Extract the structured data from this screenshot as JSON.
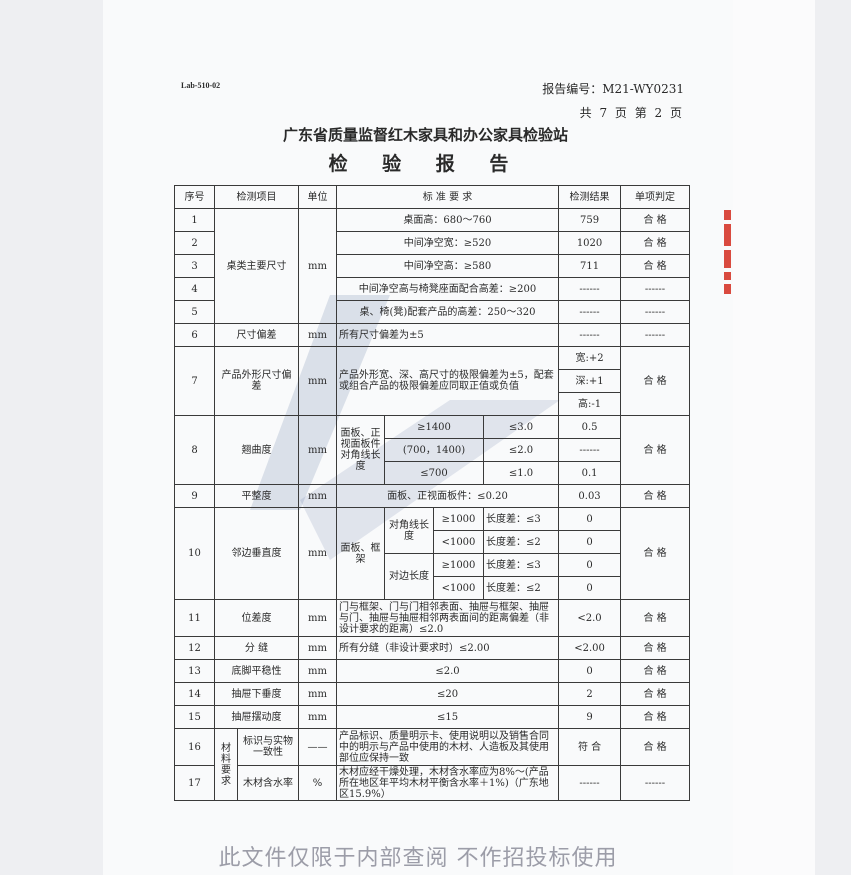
{
  "header": {
    "form_code": "Lab-510-02",
    "report_no": "报告编号：M21-WY0231",
    "page_info": "共 7 页 第 2 页",
    "organization": "广东省质量监督红木家具和办公家具检验站",
    "title": "检 验 报 告"
  },
  "watermark": "此文件仅限于内部查阅 不作招投标使用",
  "stamp_color": "#d94a3f",
  "table": {
    "headers": [
      "序号",
      "检测项目",
      "单位",
      "标 准 要 求",
      "检测结果",
      "单项判定"
    ],
    "r1": {
      "no": "1",
      "item": "桌类主要尺寸",
      "unit": "mm",
      "std": "桌面高：680～760",
      "result": "759",
      "verdict": "合 格"
    },
    "r2": {
      "no": "2",
      "std": "中间净空宽：≥520",
      "result": "1020",
      "verdict": "合 格"
    },
    "r3": {
      "no": "3",
      "std": "中间净空高：≥580",
      "result": "711",
      "verdict": "合 格"
    },
    "r4": {
      "no": "4",
      "std": "中间净空高与椅凳座面配合高差：≥200",
      "result": "------",
      "verdict": "------"
    },
    "r5": {
      "no": "5",
      "std": "桌、椅(凳)配套产品的高差：250～320",
      "result": "------",
      "verdict": "------"
    },
    "r6": {
      "no": "6",
      "item": "尺寸偏差",
      "unit": "mm",
      "std": "所有尺寸偏差为±5",
      "result": "------",
      "verdict": "------"
    },
    "r7": {
      "no": "7",
      "item": "产品外形尺寸偏差",
      "unit": "mm",
      "std": "产品外形宽、深、高尺寸的极限偏差为±5，配套或组合产品的极限偏差应同取正值或负值",
      "results": [
        "宽:+2",
        "深:+1",
        "高:-1"
      ],
      "verdict": "合 格"
    },
    "r8": {
      "no": "8",
      "item": "翘曲度",
      "unit": "mm",
      "label": "面板、正视面板件对角线长度",
      "subs": [
        {
          "range": "≥1400",
          "limit": "≤3.0",
          "result": "0.5"
        },
        {
          "range": "(700，1400)",
          "limit": "≤2.0",
          "result": "------"
        },
        {
          "range": "≤700",
          "limit": "≤1.0",
          "result": "0.1"
        }
      ],
      "verdict": "合 格"
    },
    "r9": {
      "no": "9",
      "item": "平整度",
      "unit": "mm",
      "std": "面板、正视面板件：≤0.20",
      "result": "0.03",
      "verdict": "合 格"
    },
    "r10": {
      "no": "10",
      "item": "邻边垂直度",
      "unit": "mm",
      "label": "面板、框架",
      "groups": [
        "对角线长度",
        "对边长度"
      ],
      "subs": [
        {
          "range": "≥1000",
          "limit": "长度差：≤3",
          "result": "0"
        },
        {
          "range": "<1000",
          "limit": "长度差：≤2",
          "result": "0"
        },
        {
          "range": "≥1000",
          "limit": "长度差：≤3",
          "result": "0"
        },
        {
          "range": "<1000",
          "limit": "长度差：≤2",
          "result": "0"
        }
      ],
      "verdict": "合 格"
    },
    "r11": {
      "no": "11",
      "item": "位差度",
      "unit": "mm",
      "std": "门与框架、门与门相邻表面、抽屉与框架、抽屉与门、抽屉与抽屉相邻两表面间的距离偏差（非设计要求的距离）≤2.0",
      "result": "<2.0",
      "verdict": "合 格"
    },
    "r12": {
      "no": "12",
      "item": "分 缝",
      "unit": "mm",
      "std": "所有分缝（非设计要求时）≤2.00",
      "result": "<2.00",
      "verdict": "合 格"
    },
    "r13": {
      "no": "13",
      "item": "底脚平稳性",
      "unit": "mm",
      "std": "≤2.0",
      "result": "0",
      "verdict": "合 格"
    },
    "r14": {
      "no": "14",
      "item": "抽屉下垂度",
      "unit": "mm",
      "std": "≤20",
      "result": "2",
      "verdict": "合 格"
    },
    "r15": {
      "no": "15",
      "item": "抽屉摆动度",
      "unit": "mm",
      "std": "≤15",
      "result": "9",
      "verdict": "合 格"
    },
    "material_group": "材料要求",
    "r16": {
      "no": "16",
      "item": "标识与实物一致性",
      "unit": "——",
      "std": "产品标识、质量明示卡、使用说明以及销售合同中的明示与产品中使用的木材、人造板及其使用部位应保持一致",
      "result": "符 合",
      "verdict": "合 格"
    },
    "r17": {
      "no": "17",
      "item": "木材含水率",
      "unit": "%",
      "std": "木材应经干燥处理，木材含水率应为8%～(产品所在地区年平均木材平衡含水率＋1%)（广东地区15.9%）",
      "result": "------",
      "verdict": "------"
    }
  }
}
